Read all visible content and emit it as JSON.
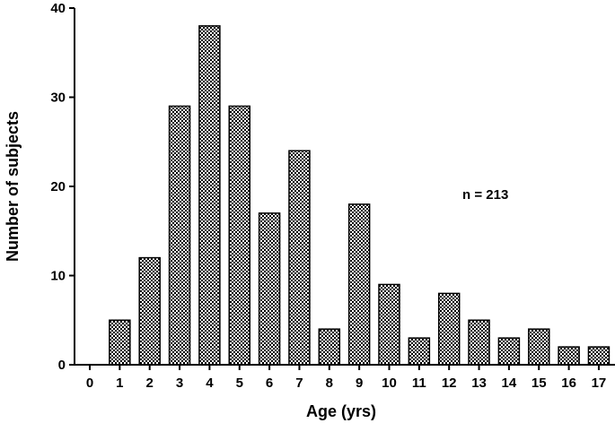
{
  "chart_data": {
    "type": "bar",
    "categories": [
      "0",
      "1",
      "2",
      "3",
      "4",
      "5",
      "6",
      "7",
      "8",
      "9",
      "10",
      "11",
      "12",
      "13",
      "14",
      "15",
      "16",
      "17"
    ],
    "values": [
      0,
      5,
      12,
      29,
      38,
      29,
      17,
      24,
      4,
      18,
      9,
      3,
      8,
      5,
      3,
      4,
      2,
      2
    ],
    "xlabel": "Age (yrs)",
    "ylabel": "Number of subjects",
    "ylim": [
      0,
      40
    ],
    "yticks": [
      0,
      10,
      20,
      30,
      40
    ],
    "annotation": "n = 213",
    "grid": false,
    "legend": "none",
    "bar_fill": "checkered",
    "colors": {
      "bar_stroke": "#000000",
      "bar_pattern": "#000000",
      "background": "#ffffff"
    }
  }
}
